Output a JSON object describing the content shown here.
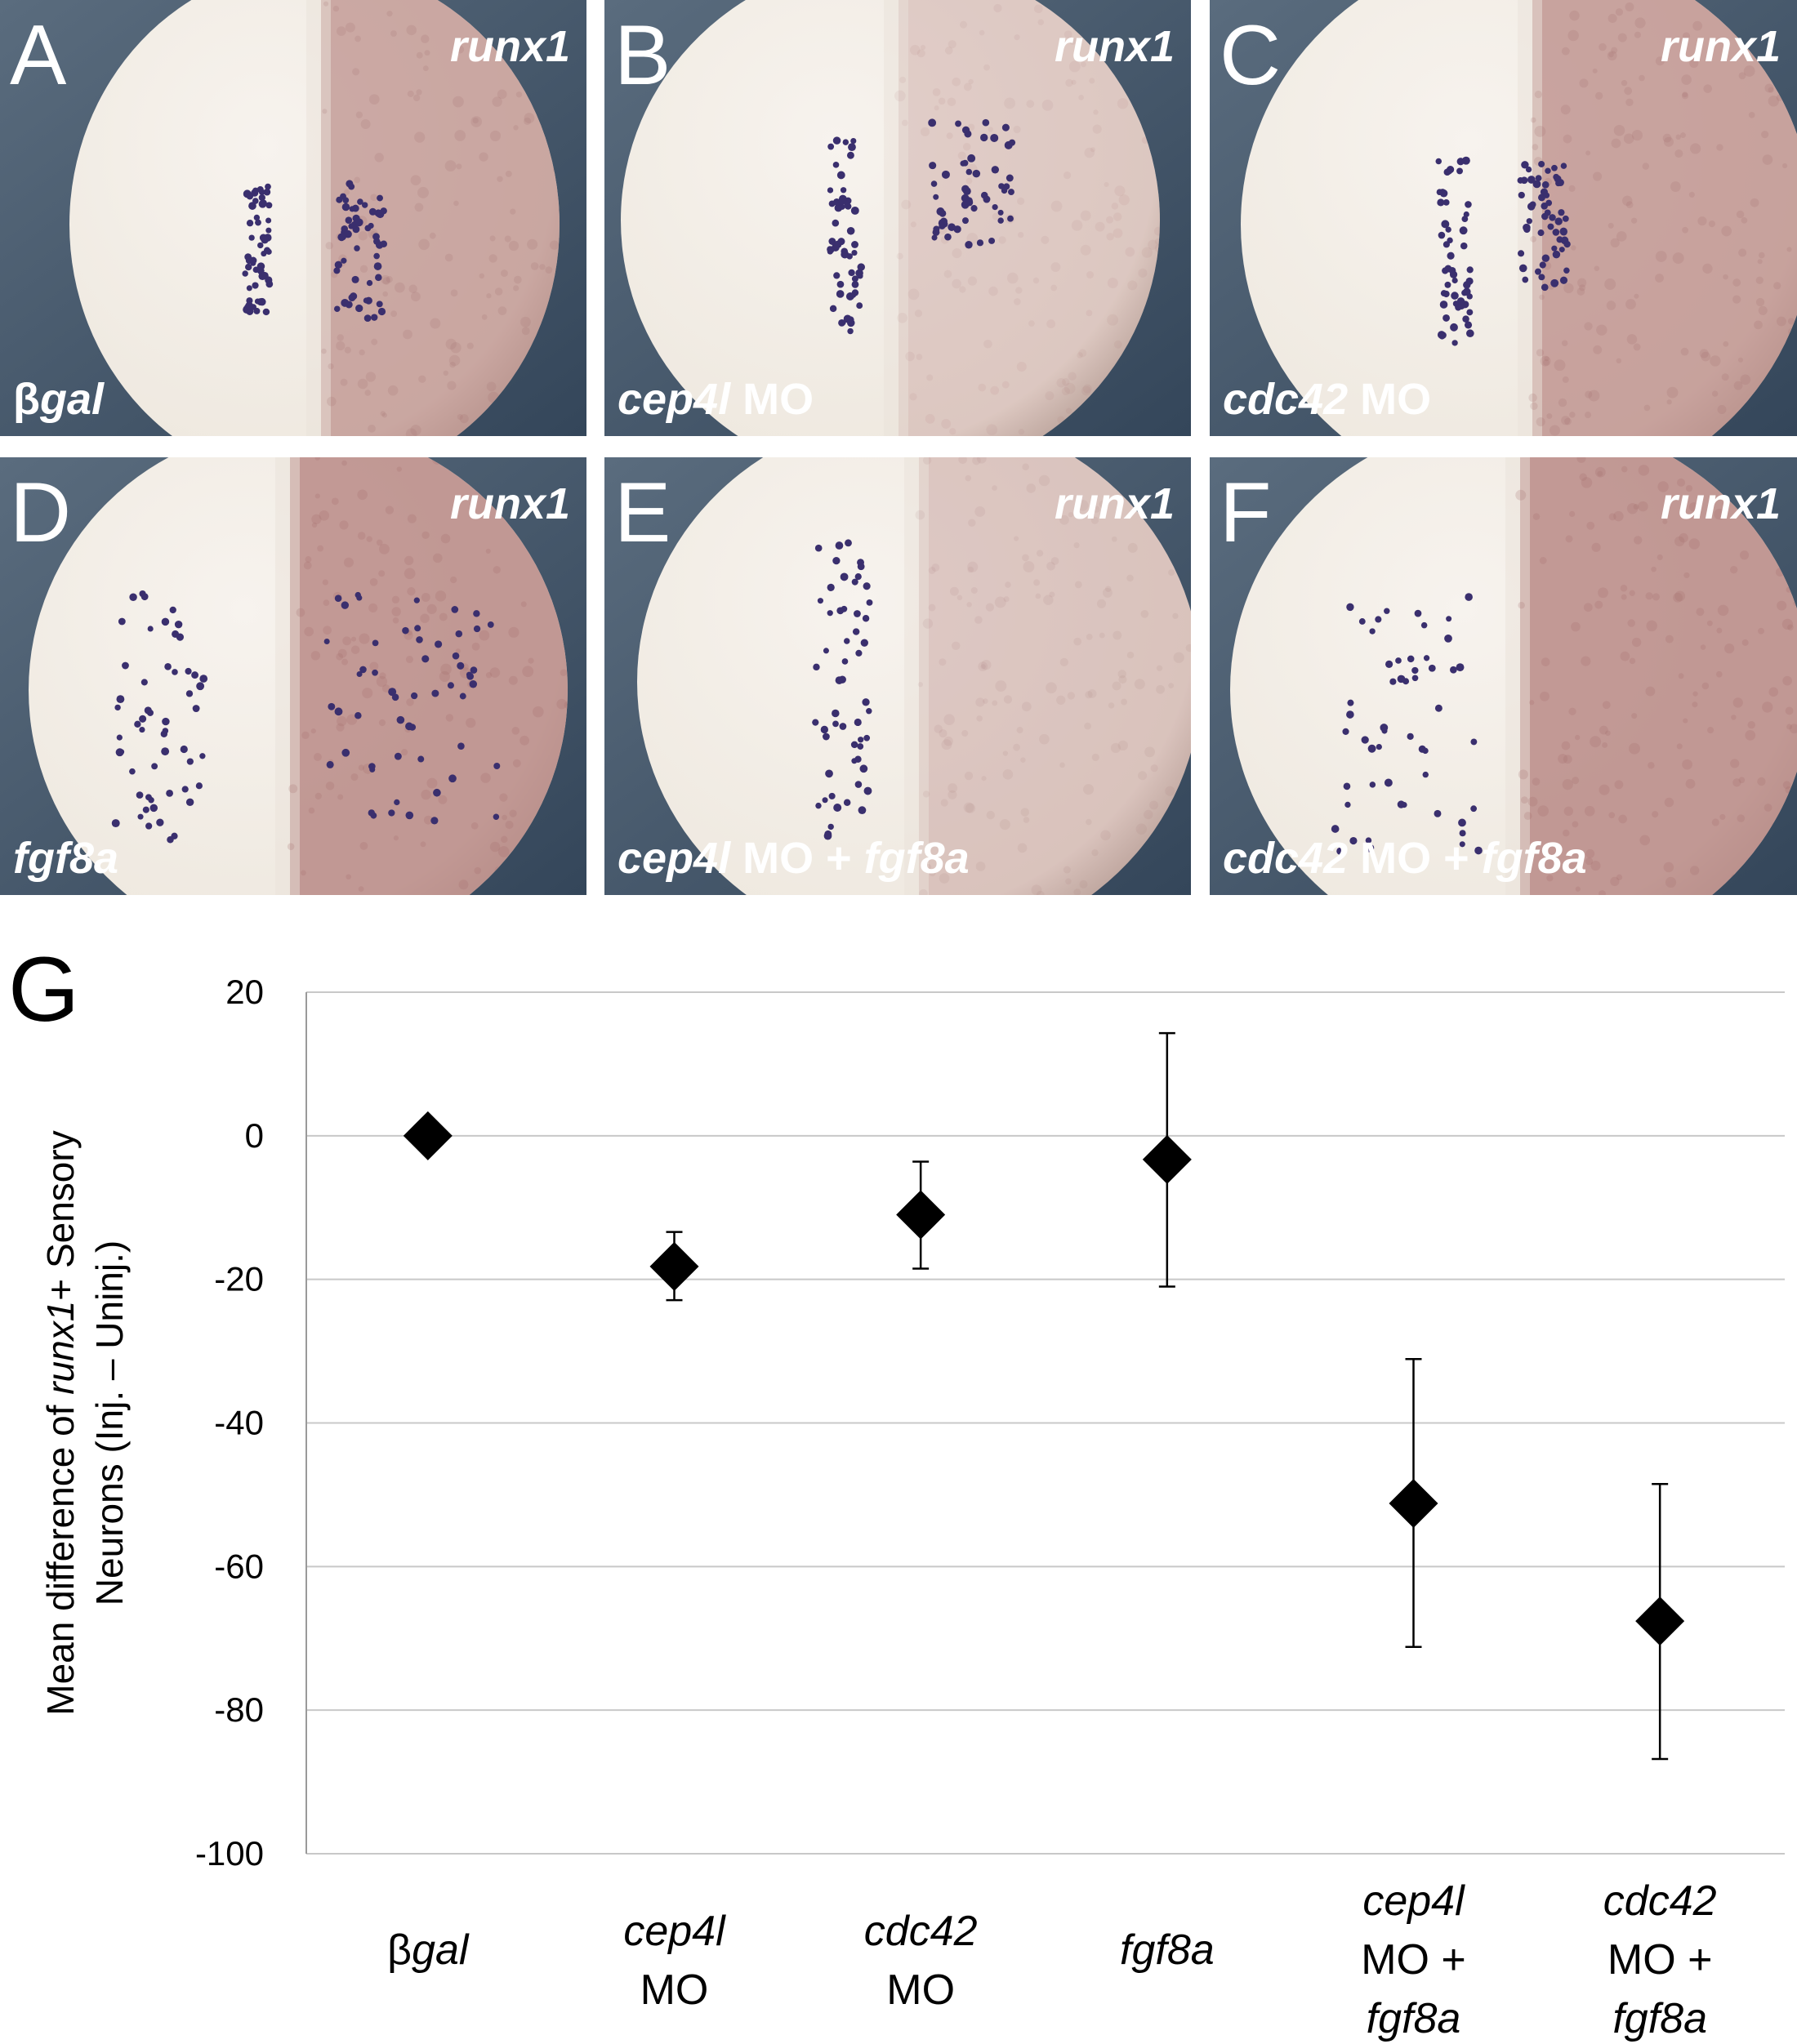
{
  "panels": [
    {
      "letter": "A",
      "gene": "runx1",
      "condition": [
        {
          "t": "β",
          "i": false
        },
        {
          "t": "gal",
          "i": true
        }
      ]
    },
    {
      "letter": "B",
      "gene": "runx1",
      "condition": [
        {
          "t": "cep4l",
          "i": true
        },
        {
          "t": " MO",
          "i": false
        }
      ]
    },
    {
      "letter": "C",
      "gene": "runx1",
      "condition": [
        {
          "t": "cdc42",
          "i": true
        },
        {
          "t": " MO",
          "i": false
        }
      ]
    },
    {
      "letter": "D",
      "gene": "runx1",
      "condition": [
        {
          "t": "fgf8a",
          "i": true
        }
      ]
    },
    {
      "letter": "E",
      "gene": "runx1",
      "condition": [
        {
          "t": "cep4l",
          "i": true
        },
        {
          "t": " MO + ",
          "i": false
        },
        {
          "t": "fgf8a",
          "i": true
        }
      ]
    },
    {
      "letter": "F",
      "gene": "runx1",
      "condition": [
        {
          "t": "cdc42",
          "i": true
        },
        {
          "t": " MO + ",
          "i": false
        },
        {
          "t": "fgf8a",
          "i": true
        }
      ]
    }
  ],
  "colors": {
    "background": "#4a5d70",
    "embryo": "#efe9e0",
    "stain": "#b98a86",
    "dots": "#3a2f6e",
    "marker": "#000000",
    "grid": "#c8c8c8"
  },
  "chart_label": "G",
  "chart_data": {
    "type": "scatter",
    "marker": "diamond",
    "ylabel": [
      [
        {
          "t": "Mean difference of ",
          "i": false
        },
        {
          "t": "runx1",
          "i": true
        },
        {
          "t": "+ Sensory",
          "i": false
        }
      ],
      [
        {
          "t": "Neurons (Inj. – Uninj.)",
          "i": false
        }
      ]
    ],
    "ylim": [
      -100,
      20
    ],
    "yticks": [
      20,
      0,
      -20,
      -40,
      -60,
      -80,
      -100
    ],
    "grid": true,
    "categories": [
      [
        [
          {
            "t": "β",
            "i": false
          },
          {
            "t": "gal",
            "i": true
          }
        ]
      ],
      [
        [
          {
            "t": "cep4l",
            "i": true
          }
        ],
        [
          {
            "t": "MO",
            "i": false
          }
        ]
      ],
      [
        [
          {
            "t": "cdc42",
            "i": true
          }
        ],
        [
          {
            "t": "MO",
            "i": false
          }
        ]
      ],
      [
        [
          {
            "t": "fgf8a",
            "i": true
          }
        ]
      ],
      [
        [
          {
            "t": "cep4l",
            "i": true
          }
        ],
        [
          {
            "t": "MO +",
            "i": false
          }
        ],
        [
          {
            "t": "fgf8a",
            "i": true
          }
        ]
      ],
      [
        [
          {
            "t": "cdc42",
            "i": true
          }
        ],
        [
          {
            "t": "MO +",
            "i": false
          }
        ],
        [
          {
            "t": "fgf8a",
            "i": true
          }
        ]
      ]
    ],
    "values": [
      0,
      -18.2,
      -11,
      -3.3,
      -51.2,
      -67.6
    ],
    "err_low": [
      0,
      -22.9,
      -18.5,
      -21,
      -71.2,
      -86.8
    ],
    "err_high": [
      0,
      -13.4,
      -3.6,
      14.3,
      -31.1,
      -48.5
    ]
  }
}
